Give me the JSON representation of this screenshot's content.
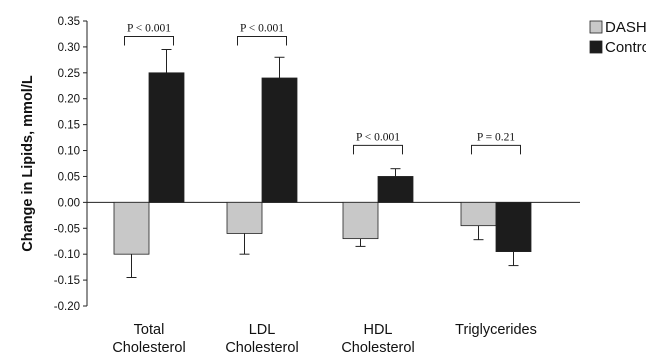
{
  "chart_data": {
    "type": "bar",
    "title": "",
    "xlabel": "",
    "ylabel": "Change in Lipids, mmol/L",
    "ylim": [
      -0.2,
      0.35
    ],
    "ytick_step": 0.05,
    "yticks": [
      "0.35",
      "0.30",
      "0.25",
      "0.20",
      "0.15",
      "0.10",
      "0.05",
      "0.00",
      "-0.05",
      "-0.10",
      "-0.15",
      "-0.20"
    ],
    "grid": false,
    "legend_position": "top-right",
    "categories": [
      [
        "Total",
        "Cholesterol"
      ],
      [
        "LDL",
        "Cholesterol"
      ],
      [
        "HDL",
        "Cholesterol"
      ],
      [
        "Triglycerides"
      ]
    ],
    "series": [
      {
        "name": "DASH",
        "color": "#c8c8c8",
        "values": [
          -0.1,
          -0.06,
          -0.07,
          -0.045
        ],
        "errors": [
          0.045,
          0.04,
          0.015,
          0.027
        ]
      },
      {
        "name": "Control",
        "color": "#1c1c1c",
        "values": [
          0.25,
          0.24,
          0.05,
          -0.095
        ],
        "errors": [
          0.045,
          0.04,
          0.015,
          0.027
        ]
      }
    ],
    "annotations": [
      {
        "text": "P < 0.001",
        "category": 0,
        "y": 0.32
      },
      {
        "text": "P < 0.001",
        "category": 1,
        "y": 0.32
      },
      {
        "text": "P < 0.001",
        "category": 2,
        "y": 0.11
      },
      {
        "text": "P = 0.21",
        "category": 3,
        "y": 0.11
      }
    ]
  }
}
